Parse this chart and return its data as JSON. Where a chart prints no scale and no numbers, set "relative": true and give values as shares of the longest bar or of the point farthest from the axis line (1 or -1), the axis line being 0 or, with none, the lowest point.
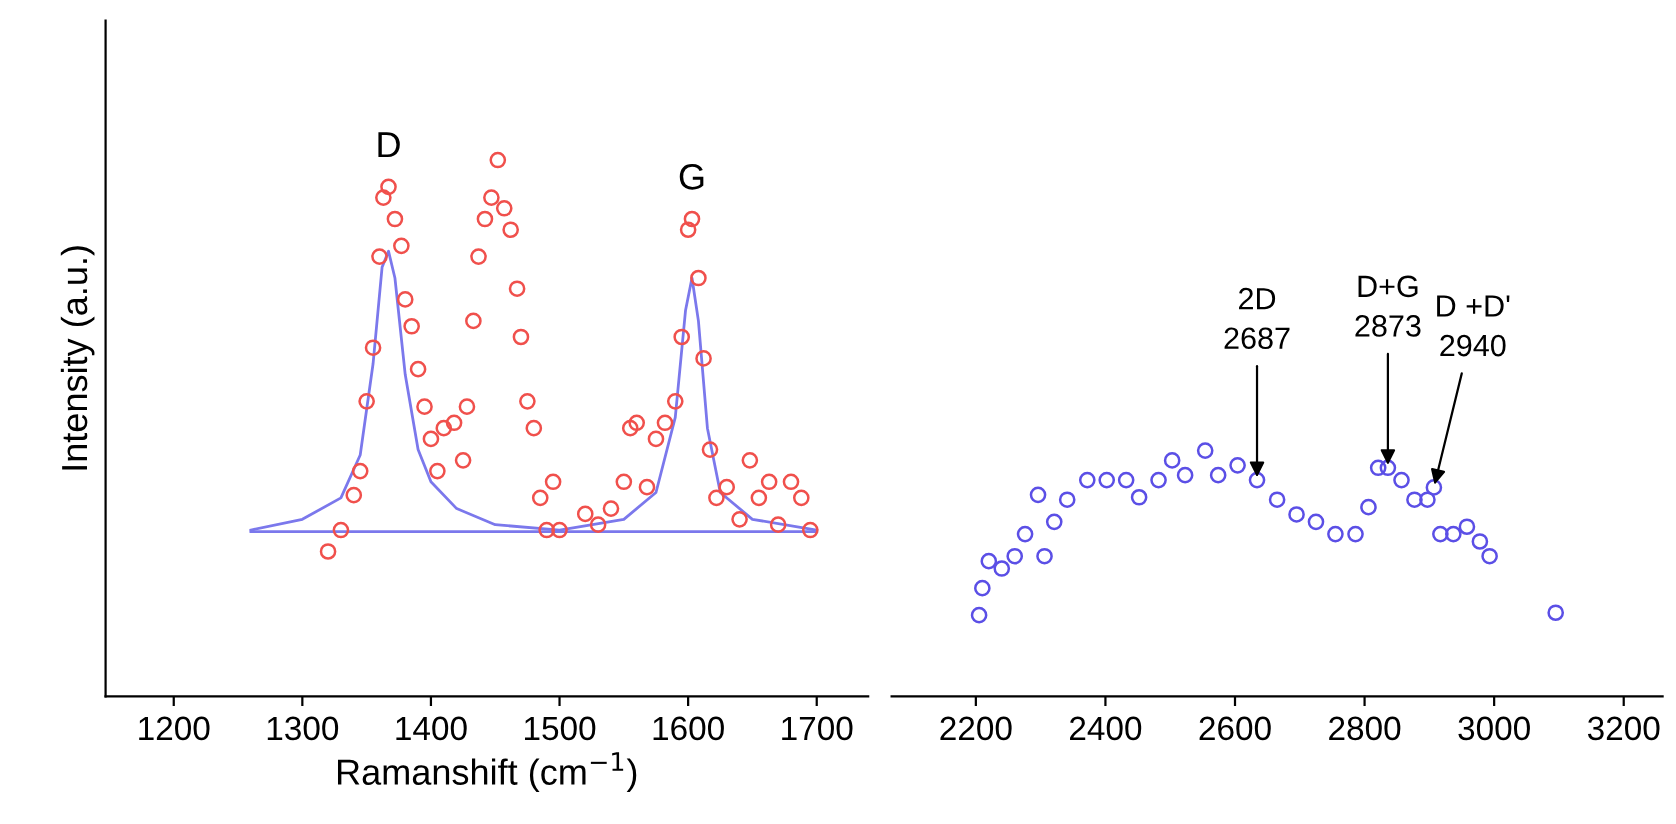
{
  "chart_data": [
    {
      "type": "scatter",
      "relative": true,
      "ylabel": "Intensity (a.u.)",
      "xlabel": "Ramanshift (cm$^{−1}$)",
      "xlim": [
        1147,
        1740
      ],
      "xticks": [
        1200,
        1300,
        1400,
        1500,
        1600,
        1700
      ],
      "tick_labels": "x",
      "grid": false,
      "annotations": [
        {
          "text": "D",
          "x": 1367,
          "y": 0.95
        },
        {
          "text": "G",
          "x": 1603,
          "y": 0.89
        }
      ],
      "series": [
        {
          "type": "line",
          "color": "#7b78ec",
          "x": [
            1260,
            1300,
            1330,
            1345,
            1355,
            1362,
            1367,
            1372,
            1380,
            1390,
            1400,
            1420,
            1450,
            1500,
            1550,
            1575,
            1590,
            1598,
            1603,
            1608,
            1615,
            1625,
            1650,
            1700
          ],
          "values": [
            0.31,
            0.33,
            0.37,
            0.45,
            0.62,
            0.8,
            0.83,
            0.78,
            0.6,
            0.46,
            0.4,
            0.35,
            0.32,
            0.31,
            0.33,
            0.38,
            0.52,
            0.72,
            0.78,
            0.7,
            0.5,
            0.38,
            0.33,
            0.31
          ]
        },
        {
          "type": "line",
          "color": "#7b78ec",
          "x": [
            1260,
            1700
          ],
          "values": [
            0.307,
            0.307
          ]
        },
        {
          "marker": "circle",
          "color": "#f0504c",
          "x": [
            1320,
            1330,
            1340,
            1345,
            1350,
            1355,
            1360,
            1363,
            1367,
            1372,
            1377,
            1380,
            1385,
            1390,
            1395,
            1400,
            1405,
            1410,
            1418,
            1425,
            1428,
            1433,
            1437,
            1442,
            1447,
            1452,
            1457,
            1462,
            1467,
            1470,
            1475,
            1480,
            1485,
            1490,
            1495,
            1500,
            1520,
            1530,
            1540,
            1550,
            1555,
            1560,
            1568,
            1575,
            1582,
            1590,
            1595,
            1600,
            1603,
            1608,
            1612,
            1617,
            1622,
            1630,
            1640,
            1648,
            1655,
            1663,
            1670,
            1680,
            1688,
            1695
          ],
          "values": [
            0.27,
            0.31,
            0.375,
            0.42,
            0.55,
            0.65,
            0.82,
            0.93,
            0.95,
            0.89,
            0.84,
            0.74,
            0.69,
            0.61,
            0.54,
            0.48,
            0.42,
            0.5,
            0.51,
            0.44,
            0.54,
            0.7,
            0.82,
            0.89,
            0.93,
            1.0,
            0.91,
            0.87,
            0.76,
            0.67,
            0.55,
            0.5,
            0.37,
            0.31,
            0.4,
            0.31,
            0.34,
            0.32,
            0.35,
            0.4,
            0.5,
            0.51,
            0.39,
            0.48,
            0.51,
            0.55,
            0.67,
            0.87,
            0.89,
            0.78,
            0.63,
            0.46,
            0.37,
            0.39,
            0.33,
            0.44,
            0.37,
            0.4,
            0.32,
            0.4,
            0.37,
            0.31
          ]
        }
      ]
    },
    {
      "type": "scatter",
      "relative": true,
      "xlim": [
        2070,
        3260
      ],
      "xticks": [
        2200,
        2400,
        2600,
        2800,
        3000,
        3200
      ],
      "tick_labels": "x",
      "grid": false,
      "annotations": [
        {
          "text": "2D\n2687",
          "x": 2634,
          "y": 0.88
        },
        {
          "text": "D+G\n2873",
          "x": 2836,
          "y": 0.93
        },
        {
          "text": "D +D'\n2940",
          "x": 2907,
          "y": 0.85
        }
      ],
      "series": [
        {
          "marker": "circle",
          "color": "#5b4fe6",
          "x": [
            2205,
            2210,
            2220,
            2240,
            2260,
            2276,
            2296,
            2306,
            2321,
            2341,
            2372,
            2402,
            2432,
            2452,
            2482,
            2503,
            2523,
            2554,
            2574,
            2604,
            2634,
            2665,
            2695,
            2725,
            2755,
            2786,
            2806,
            2821,
            2836,
            2857,
            2877,
            2897,
            2907,
            2917,
            2937,
            2958,
            2978,
            2993,
            3095
          ],
          "values": [
            0.33,
            0.44,
            0.55,
            0.52,
            0.57,
            0.66,
            0.82,
            0.57,
            0.71,
            0.8,
            0.88,
            0.88,
            0.88,
            0.81,
            0.88,
            0.96,
            0.9,
            1.0,
            0.9,
            0.94,
            0.88,
            0.8,
            0.74,
            0.71,
            0.66,
            0.66,
            0.77,
            0.93,
            0.93,
            0.88,
            0.8,
            0.8,
            0.85,
            0.66,
            0.66,
            0.69,
            0.63,
            0.57,
            0.34
          ]
        }
      ]
    }
  ]
}
